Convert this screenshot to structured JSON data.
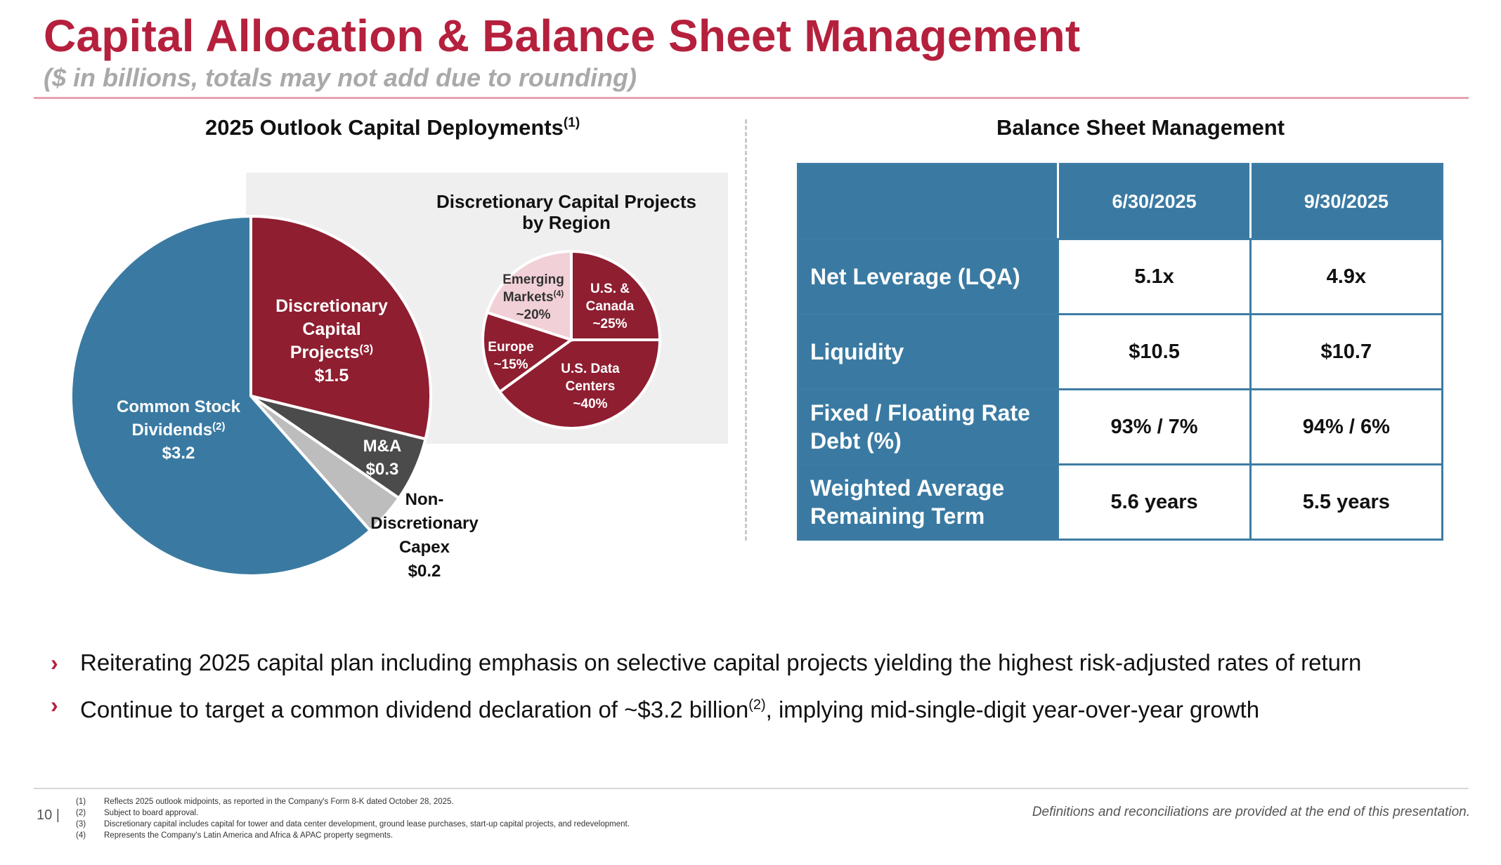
{
  "header": {
    "title": "Capital Allocation & Balance Sheet Management",
    "subtitle": "($ in billions, totals may not add due to rounding)"
  },
  "left_section": {
    "heading": "2025 Outlook Capital Deployments",
    "heading_sup": "(1)"
  },
  "right_section": {
    "heading": "Balance Sheet Management"
  },
  "chart_data": [
    {
      "type": "pie",
      "title": "2025 Outlook Capital Deployments",
      "slices": [
        {
          "label": "Discretionary Capital Projects",
          "sup": "(3)",
          "value": 1.5,
          "value_label": "$1.5",
          "color": "#8e1e30"
        },
        {
          "label": "M&A",
          "sup": "",
          "value": 0.3,
          "value_label": "$0.3",
          "color": "#4b4b4b"
        },
        {
          "label": "Non-Discretionary Capex",
          "sup": "",
          "value": 0.2,
          "value_label": "$0.2",
          "color": "#bdbdbd"
        },
        {
          "label": "Common Stock Dividends",
          "sup": "(2)",
          "value": 3.2,
          "value_label": "$3.2",
          "color": "#3a7aa2"
        }
      ]
    },
    {
      "type": "pie",
      "title": "Discretionary Capital Projects by Region",
      "slices": [
        {
          "label": "U.S. & Canada",
          "sup": "",
          "value": 25,
          "value_label": "~25%",
          "color": "#8e1e30"
        },
        {
          "label": "U.S. Data Centers",
          "sup": "",
          "value": 40,
          "value_label": "~40%",
          "color": "#8e1e30"
        },
        {
          "label": "Europe",
          "sup": "",
          "value": 15,
          "value_label": "~15%",
          "color": "#8e1e30"
        },
        {
          "label": "Emerging Markets",
          "sup": "(4)",
          "value": 20,
          "value_label": "~20%",
          "color": "#f2d0d8"
        }
      ]
    }
  ],
  "region_chart_title_lines": [
    "Discretionary Capital Projects",
    "by Region"
  ],
  "table": {
    "columns": [
      "6/30/2025",
      "9/30/2025"
    ],
    "rows": [
      {
        "label_lines": [
          "Net Leverage (LQA)"
        ],
        "values": [
          "5.1x",
          "4.9x"
        ]
      },
      {
        "label_lines": [
          "Liquidity"
        ],
        "values": [
          "$10.5",
          "$10.7"
        ]
      },
      {
        "label_lines": [
          "Fixed / Floating Rate",
          "Debt (%)"
        ],
        "values": [
          "93% / 7%",
          "94% / 6%"
        ]
      },
      {
        "label_lines": [
          "Weighted Average",
          "Remaining Term"
        ],
        "values": [
          "5.6 years",
          "5.5 years"
        ]
      }
    ]
  },
  "bullets": [
    {
      "text": "Reiterating 2025 capital plan including emphasis on selective capital projects yielding the highest risk-adjusted rates of return",
      "sup": "",
      "after": ""
    },
    {
      "text": "Continue to target a common dividend declaration of ~$3.2 billion",
      "sup": "(2)",
      "after": ", implying mid-single-digit year-over-year growth"
    }
  ],
  "footer": {
    "page_number": "10 |",
    "footnotes": [
      {
        "n": "(1)",
        "text": "Reflects 2025 outlook midpoints, as reported in the Company's Form 8-K dated October 28, 2025."
      },
      {
        "n": "(2)",
        "text": "Subject to board approval."
      },
      {
        "n": "(3)",
        "text": "Discretionary capital includes capital for tower and data center development, ground lease purchases, start-up capital projects, and redevelopment."
      },
      {
        "n": "(4)",
        "text": "Represents the Company's Latin America and Africa & APAC property segments."
      }
    ],
    "disclaimer": "Definitions and reconciliations are provided at the end of this presentation."
  }
}
